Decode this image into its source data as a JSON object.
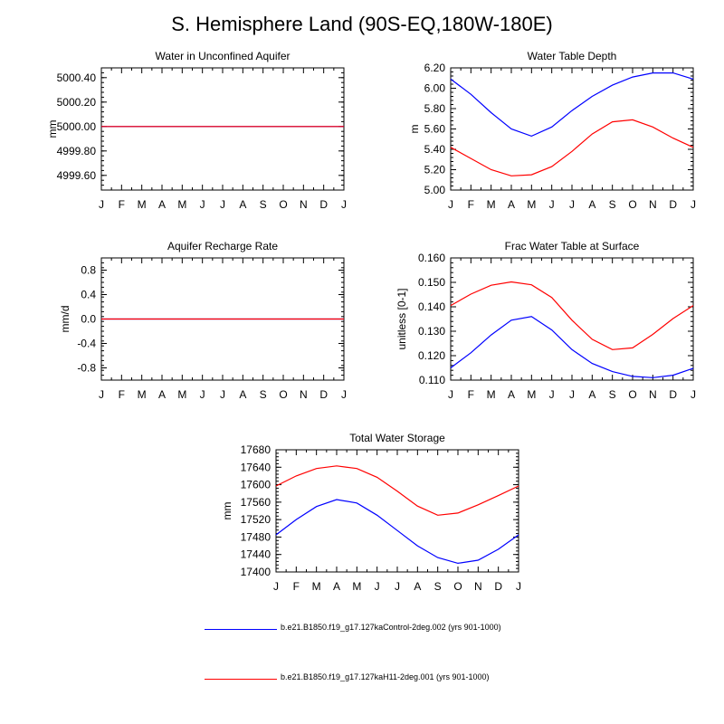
{
  "figure": {
    "title": "S. Hemisphere Land (90S-EQ,180W-180E)"
  },
  "chart_data": [
    {
      "type": "line",
      "title": "Water in Unconfined Aquifer",
      "ylabel": "mm",
      "xlabel": "",
      "categories": [
        "J",
        "F",
        "M",
        "A",
        "M",
        "J",
        "J",
        "A",
        "S",
        "O",
        "N",
        "D",
        "J"
      ],
      "ylim": [
        4999.48,
        5000.48
      ],
      "yticks": [
        4999.6,
        4999.8,
        5000.0,
        5000.2,
        5000.4
      ],
      "ytick_labels": [
        "4999.60",
        "4999.80",
        "5000.00",
        "5000.20",
        "5000.40"
      ],
      "series": [
        {
          "color": "#0000ff",
          "values": [
            5000.0,
            5000.0,
            5000.0,
            5000.0,
            5000.0,
            5000.0,
            5000.0,
            5000.0,
            5000.0,
            5000.0,
            5000.0,
            5000.0,
            5000.0
          ]
        },
        {
          "color": "#ff0000",
          "values": [
            5000.0,
            5000.0,
            5000.0,
            5000.0,
            5000.0,
            5000.0,
            5000.0,
            5000.0,
            5000.0,
            5000.0,
            5000.0,
            5000.0,
            5000.0
          ]
        }
      ]
    },
    {
      "type": "line",
      "title": "Water Table Depth",
      "ylabel": "m",
      "xlabel": "",
      "categories": [
        "J",
        "F",
        "M",
        "A",
        "M",
        "J",
        "J",
        "A",
        "S",
        "O",
        "N",
        "D",
        "J"
      ],
      "ylim": [
        5.0,
        6.2
      ],
      "yticks": [
        5.0,
        5.2,
        5.4,
        5.6,
        5.8,
        6.0,
        6.2
      ],
      "ytick_labels": [
        "5.00",
        "5.20",
        "5.40",
        "5.60",
        "5.80",
        "6.00",
        "6.20"
      ],
      "series": [
        {
          "color": "#0000ff",
          "values": [
            6.09,
            5.94,
            5.76,
            5.6,
            5.53,
            5.62,
            5.78,
            5.92,
            6.03,
            6.11,
            6.15,
            6.15,
            6.09
          ]
        },
        {
          "color": "#ff0000",
          "values": [
            5.42,
            5.31,
            5.2,
            5.14,
            5.15,
            5.23,
            5.38,
            5.55,
            5.67,
            5.69,
            5.62,
            5.51,
            5.42
          ]
        }
      ]
    },
    {
      "type": "line",
      "title": "Aquifer Recharge Rate",
      "ylabel": "mm/d",
      "xlabel": "",
      "categories": [
        "J",
        "F",
        "M",
        "A",
        "M",
        "J",
        "J",
        "A",
        "S",
        "O",
        "N",
        "D",
        "J"
      ],
      "ylim": [
        -1.0,
        1.0
      ],
      "yticks": [
        -0.8,
        -0.4,
        0.0,
        0.4,
        0.8
      ],
      "ytick_labels": [
        "-0.8",
        "-0.4",
        "0.0",
        "0.4",
        "0.8"
      ],
      "series": [
        {
          "color": "#0000ff",
          "values": [
            0,
            0,
            0,
            0,
            0,
            0,
            0,
            0,
            0,
            0,
            0,
            0,
            0
          ]
        },
        {
          "color": "#ff0000",
          "values": [
            0,
            0,
            0,
            0,
            0,
            0,
            0,
            0,
            0,
            0,
            0,
            0,
            0
          ]
        }
      ]
    },
    {
      "type": "line",
      "title": "Frac Water Table at Surface",
      "ylabel": "unitless [0-1]",
      "xlabel": "",
      "categories": [
        "J",
        "F",
        "M",
        "A",
        "M",
        "J",
        "J",
        "A",
        "S",
        "O",
        "N",
        "D",
        "J"
      ],
      "ylim": [
        0.11,
        0.16
      ],
      "yticks": [
        0.11,
        0.12,
        0.13,
        0.14,
        0.15,
        0.16
      ],
      "ytick_labels": [
        "0.110",
        "0.120",
        "0.130",
        "0.140",
        "0.150",
        "0.160"
      ],
      "series": [
        {
          "color": "#0000ff",
          "values": [
            0.115,
            0.1212,
            0.1285,
            0.1345,
            0.136,
            0.1305,
            0.1225,
            0.1168,
            0.1135,
            0.1115,
            0.111,
            0.112,
            0.1148
          ]
        },
        {
          "color": "#ff0000",
          "values": [
            0.1405,
            0.1452,
            0.1488,
            0.1502,
            0.149,
            0.1438,
            0.1345,
            0.1267,
            0.1225,
            0.1232,
            0.1287,
            0.1352,
            0.1405
          ]
        }
      ]
    },
    {
      "type": "line",
      "title": "Total Water Storage",
      "ylabel": "mm",
      "xlabel": "",
      "categories": [
        "J",
        "F",
        "M",
        "A",
        "M",
        "J",
        "J",
        "A",
        "S",
        "O",
        "N",
        "D",
        "J"
      ],
      "ylim": [
        17400,
        17680
      ],
      "yticks": [
        17400,
        17440,
        17480,
        17520,
        17560,
        17600,
        17640,
        17680
      ],
      "ytick_labels": [
        "17400",
        "17440",
        "17480",
        "17520",
        "17560",
        "17600",
        "17640",
        "17680"
      ],
      "series": [
        {
          "color": "#0000ff",
          "values": [
            17485,
            17520,
            17550,
            17566,
            17558,
            17530,
            17495,
            17460,
            17433,
            17420,
            17427,
            17452,
            17485
          ]
        },
        {
          "color": "#ff0000",
          "values": [
            17597,
            17620,
            17637,
            17643,
            17637,
            17617,
            17585,
            17551,
            17530,
            17535,
            17554,
            17575,
            17597
          ]
        }
      ]
    }
  ],
  "legend": [
    {
      "color": "#0000ff",
      "label": "b.e21.B1850.f19_g17.127kaControl-2deg.002 (yrs 901-1000)"
    },
    {
      "color": "#ff0000",
      "label": "b.e21.B1850.f19_g17.127kaH11-2deg.001 (yrs 901-1000)"
    }
  ]
}
